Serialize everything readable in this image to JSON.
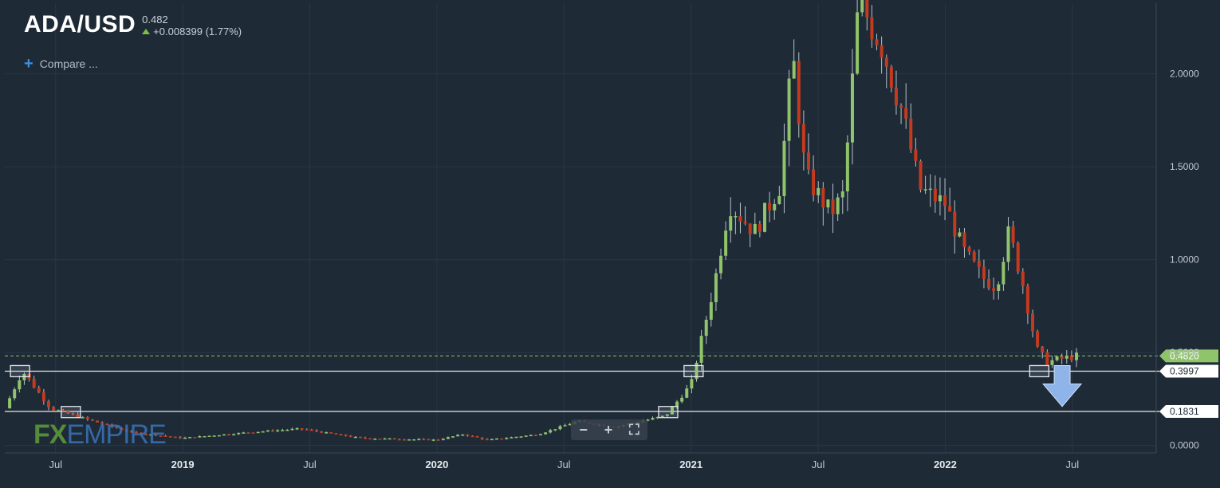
{
  "header": {
    "symbol": "ADA/USD",
    "last_price": "0.482",
    "change": "+0.008399 (1.77%)"
  },
  "compare": {
    "label": "Compare ..."
  },
  "zoom": {
    "minus": "−",
    "plus": "+",
    "fullscreen": "⛶"
  },
  "logo": {
    "fx": "FX",
    "empire": "EMPIRE"
  },
  "colors": {
    "background": "#1e2a36",
    "grid": "#2a3744",
    "up": "#8fc46a",
    "down": "#c43a1e",
    "wick": "#b8c0c8",
    "level_line": "#e6e9ec",
    "price_line": "#8fc46a",
    "arrow": "#8fb4ea"
  },
  "chart_data": {
    "type": "candlestick",
    "title": "ADA/USD",
    "x_tick_labels": [
      "Jul",
      "2019",
      "Jul",
      "2020",
      "Jul",
      "2021",
      "Jul",
      "2022",
      "Jul"
    ],
    "y_tick_labels": [
      "0.0000",
      "0.5000",
      "1.0000",
      "1.5000",
      "2.0000"
    ],
    "ylim": [
      -0.04,
      2.38
    ],
    "xlim": [
      2018.3,
      2022.83
    ],
    "grid": true,
    "y_axis_side": "right",
    "last_price_label": "0.4820",
    "last_price": 0.482,
    "horizontal_levels": [
      {
        "value": 0.3997,
        "label": "0.3997"
      },
      {
        "value": 0.1831,
        "label": "0.1831"
      }
    ],
    "highlight_boxes": [
      {
        "date": 2018.36,
        "price": 0.4
      },
      {
        "date": 2018.56,
        "price": 0.18
      },
      {
        "date": 2020.91,
        "price": 0.18
      },
      {
        "date": 2021.01,
        "price": 0.4
      },
      {
        "date": 2022.37,
        "price": 0.4
      }
    ],
    "forecast_arrow": {
      "direction": "down",
      "date": 2022.46,
      "from": 0.43,
      "to": 0.21
    },
    "candles_weekly_key_points": [
      {
        "date": 2018.3,
        "close": 0.2
      },
      {
        "date": 2018.37,
        "close": 0.4
      },
      {
        "date": 2018.48,
        "close": 0.2
      },
      {
        "date": 2018.6,
        "close": 0.15
      },
      {
        "date": 2018.8,
        "close": 0.07
      },
      {
        "date": 2019.0,
        "close": 0.04
      },
      {
        "date": 2019.25,
        "close": 0.07
      },
      {
        "date": 2019.46,
        "close": 0.09
      },
      {
        "date": 2019.7,
        "close": 0.04
      },
      {
        "date": 2020.0,
        "close": 0.03
      },
      {
        "date": 2020.1,
        "close": 0.06
      },
      {
        "date": 2020.2,
        "close": 0.03
      },
      {
        "date": 2020.4,
        "close": 0.06
      },
      {
        "date": 2020.55,
        "close": 0.13
      },
      {
        "date": 2020.7,
        "close": 0.1
      },
      {
        "date": 2020.9,
        "close": 0.16
      },
      {
        "date": 2021.0,
        "close": 0.33
      },
      {
        "date": 2021.09,
        "close": 0.86
      },
      {
        "date": 2021.15,
        "close": 1.3
      },
      {
        "date": 2021.25,
        "close": 1.15
      },
      {
        "date": 2021.35,
        "close": 1.4
      },
      {
        "date": 2021.4,
        "close": 2.1
      },
      {
        "date": 2021.45,
        "close": 1.45
      },
      {
        "date": 2021.55,
        "close": 1.25
      },
      {
        "date": 2021.6,
        "close": 1.35
      },
      {
        "date": 2021.66,
        "close": 2.4
      },
      {
        "date": 2021.75,
        "close": 2.15
      },
      {
        "date": 2021.83,
        "close": 1.8
      },
      {
        "date": 2021.9,
        "close": 1.38
      },
      {
        "date": 2022.0,
        "close": 1.3
      },
      {
        "date": 2022.07,
        "close": 1.05
      },
      {
        "date": 2022.15,
        "close": 0.9
      },
      {
        "date": 2022.2,
        "close": 0.85
      },
      {
        "date": 2022.25,
        "close": 1.15
      },
      {
        "date": 2022.3,
        "close": 0.9
      },
      {
        "date": 2022.36,
        "close": 0.52
      },
      {
        "date": 2022.4,
        "close": 0.45
      },
      {
        "date": 2022.47,
        "close": 0.47
      },
      {
        "date": 2022.52,
        "close": 0.482
      }
    ]
  }
}
